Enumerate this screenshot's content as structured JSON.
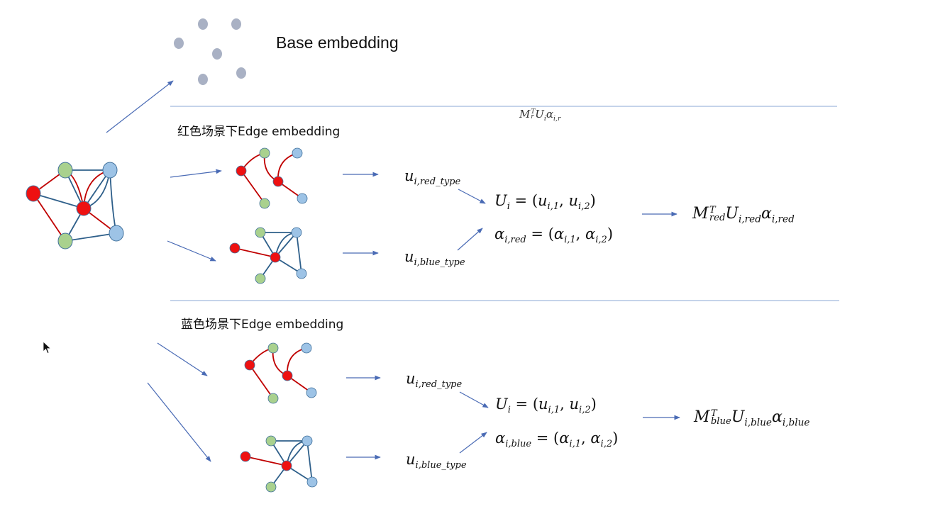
{
  "base_label": "Base embedding",
  "sections": [
    {
      "title": "红色场景下Edge embedding",
      "header_formula": {
        "M": "M",
        "M_sub": "r",
        "M_sup": "T",
        "U": "U",
        "U_sub": "i",
        "a": "α",
        "a_sub": "i,r"
      },
      "u_red": {
        "base": "u",
        "sub": "i,red_type"
      },
      "u_blue": {
        "base": "u",
        "sub": "i,blue_type"
      },
      "U_eq": {
        "lhs": "U",
        "lhs_sub": "i",
        "eq": " = (",
        "a": "u",
        "a_sub": "i,1",
        "comma": ", ",
        "b": "u",
        "b_sub": "i,2",
        "close": ")"
      },
      "alpha_eq": {
        "lhs": "α",
        "lhs_sub": "i,red",
        "eq": " = (",
        "a": "α",
        "a_sub": "i,1",
        "comma": ", ",
        "b": "α",
        "b_sub": "i,2",
        "close": ")"
      },
      "result": {
        "M": "M",
        "M_sub": "red",
        "M_sup": "T",
        "U": "U",
        "U_sub": "i,red",
        "a": "α",
        "a_sub": "i,red"
      }
    },
    {
      "title": "蓝色场景下Edge embedding",
      "u_red": {
        "base": "u",
        "sub": "i,red_type"
      },
      "u_blue": {
        "base": "u",
        "sub": "i,blue_type"
      },
      "U_eq": {
        "lhs": "U",
        "lhs_sub": "i",
        "eq": " = (",
        "a": "u",
        "a_sub": "i,1",
        "comma": ", ",
        "b": "u",
        "b_sub": "i,2",
        "close": ")"
      },
      "alpha_eq": {
        "lhs": "α",
        "lhs_sub": "i,blue",
        "eq": " = (",
        "a": "α",
        "a_sub": "i,1",
        "comma": ", ",
        "b": "α",
        "b_sub": "i,2",
        "close": ")"
      },
      "result": {
        "M": "M",
        "M_sub": "blue",
        "M_sup": "T",
        "U": "U",
        "U_sub": "i,blue",
        "a": "α",
        "a_sub": "i,blue"
      }
    }
  ],
  "colors": {
    "red_node": "#ee1111",
    "green_node": "#a9d18e",
    "blue_node": "#9dc3e6",
    "node_stroke": "#41719c",
    "red_edge": "#c00000",
    "blue_edge": "#2e5f8a",
    "arrow": "#4a6bb5",
    "separator": "#c5d3ea",
    "base_dot": "#a9b1c4"
  },
  "icons": {
    "cursor": "mouse-pointer-icon",
    "arrow": "arrow-right-icon"
  }
}
